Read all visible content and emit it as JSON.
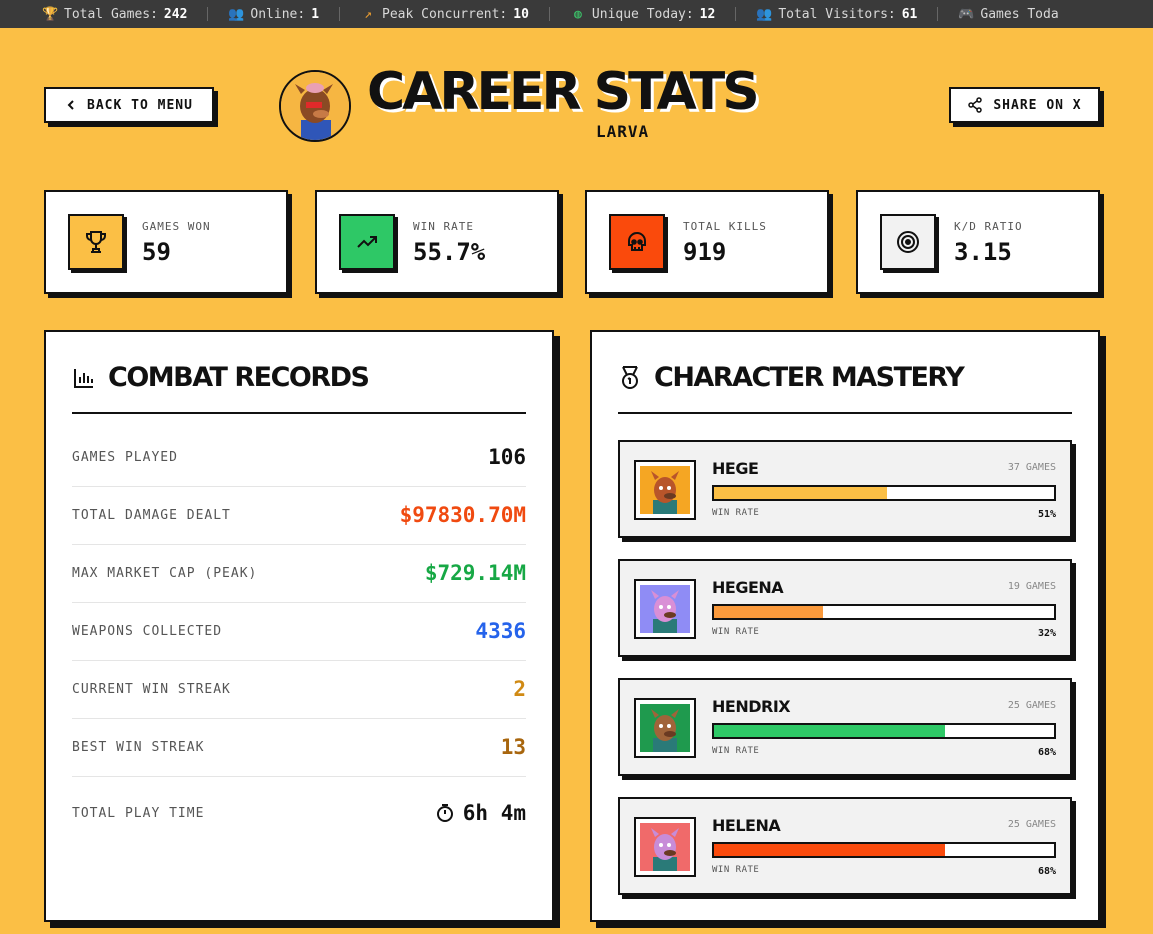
{
  "ticker": [
    {
      "icon": "trophy-icon",
      "label": "Total Games:",
      "value": "242",
      "color": "#e0b020"
    },
    {
      "icon": "users-icon",
      "label": "Online:",
      "value": "1",
      "color": "#5aa0e6"
    },
    {
      "icon": "trending-up-icon",
      "label": "Peak Concurrent:",
      "value": "10",
      "color": "#f0a030"
    },
    {
      "icon": "globe-icon",
      "label": "Unique Today:",
      "value": "12",
      "color": "#3cc46a"
    },
    {
      "icon": "visitors-icon",
      "label": "Total Visitors:",
      "value": "61",
      "color": "#38c0c8"
    },
    {
      "icon": "gamepad-icon",
      "label": "Games Toda",
      "value": "",
      "color": "#c070e0"
    }
  ],
  "header": {
    "back_label": "BACK TO MENU",
    "title": "CAREER STATS",
    "player": "LARVA",
    "share_label": "SHARE ON X"
  },
  "stats": [
    {
      "label": "GAMES WON",
      "value": "59",
      "icon": "trophy-icon",
      "color": "#fbbf45"
    },
    {
      "label": "WIN RATE",
      "value": "55.7%",
      "icon": "trending-up-icon",
      "color": "#2ec866"
    },
    {
      "label": "TOTAL KILLS",
      "value": "919",
      "icon": "skull-icon",
      "color": "#fa4a0c"
    },
    {
      "label": "K/D RATIO",
      "value": "3.15",
      "icon": "target-icon",
      "color": "#f2f2f2"
    }
  ],
  "combat": {
    "title": "COMBAT RECORDS",
    "rows": [
      {
        "label": "GAMES PLAYED",
        "value": "106",
        "color": "#111111"
      },
      {
        "label": "TOTAL DAMAGE DEALT",
        "value": "$97830.70M",
        "color": "#f04a10"
      },
      {
        "label": "MAX MARKET CAP (PEAK)",
        "value": "$729.14M",
        "color": "#17a845"
      },
      {
        "label": "WEAPONS COLLECTED",
        "value": "4336",
        "color": "#2563eb"
      },
      {
        "label": "CURRENT WIN STREAK",
        "value": "2",
        "color": "#d08a14"
      },
      {
        "label": "BEST WIN STREAK",
        "value": "13",
        "color": "#a8660e"
      },
      {
        "label": "TOTAL PLAY TIME",
        "value": "6h 4m",
        "color": "#111111"
      }
    ]
  },
  "mastery": {
    "title": "CHARACTER MASTERY",
    "win_rate_label": "WIN RATE",
    "characters": [
      {
        "name": "HEGE",
        "games": "37 GAMES",
        "win_rate": "51%",
        "rate": 0.51,
        "bar_color": "#fbbf45",
        "bg": "#f5a623",
        "skin": "#b8552a"
      },
      {
        "name": "HEGENA",
        "games": "19 GAMES",
        "win_rate": "32%",
        "rate": 0.32,
        "bar_color": "#fb9a3c",
        "bg": "#8f8cf5",
        "skin": "#d98fd6"
      },
      {
        "name": "HENDRIX",
        "games": "25 GAMES",
        "win_rate": "68%",
        "rate": 0.68,
        "bar_color": "#2ec866",
        "bg": "#1f9a4e",
        "skin": "#a0643a"
      },
      {
        "name": "HELENA",
        "games": "25 GAMES",
        "win_rate": "68%",
        "rate": 0.68,
        "bar_color": "#fa4a0c",
        "bg": "#f06a6a",
        "skin": "#c88cd8"
      }
    ]
  }
}
